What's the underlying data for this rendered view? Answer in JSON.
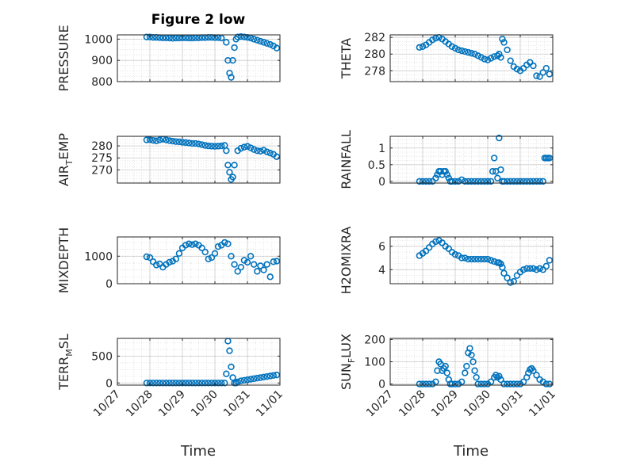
{
  "figure_title": "Figure 2 low",
  "xlabel": "Time",
  "x_ticks": [
    "10/27",
    "10/28",
    "10/29",
    "10/30",
    "10/31",
    "11/01"
  ],
  "colors": {
    "marker": "#0072BD",
    "axis": "#262626",
    "grid": "#b0b0b0",
    "background": "#ffffff"
  },
  "chart_data": [
    {
      "type": "scatter",
      "ylabel": "PRESSURE",
      "ylabel_main": "PRESSURE",
      "ylabel_sub": "",
      "ylabel_tail": "",
      "ylim": [
        800,
        1020
      ],
      "yticks": [
        800,
        900,
        1000
      ],
      "xlim": [
        0,
        5
      ],
      "x": [
        0.9,
        1.0,
        1.1,
        1.2,
        1.3,
        1.4,
        1.5,
        1.6,
        1.7,
        1.8,
        1.9,
        2.0,
        2.1,
        2.2,
        2.3,
        2.4,
        2.5,
        2.6,
        2.7,
        2.8,
        2.9,
        3.0,
        3.1,
        3.2,
        3.35,
        3.4,
        3.45,
        3.5,
        3.55,
        3.6,
        3.65,
        3.7,
        3.8,
        3.9,
        4.0,
        4.1,
        4.2,
        4.3,
        4.4,
        4.5,
        4.6,
        4.7,
        4.8,
        4.9
      ],
      "y": [
        1010,
        1010,
        1008,
        1008,
        1007,
        1006,
        1006,
        1005,
        1004,
        1005,
        1005,
        1006,
        1006,
        1005,
        1005,
        1006,
        1006,
        1007,
        1007,
        1008,
        1008,
        1007,
        1007,
        1005,
        985,
        900,
        840,
        820,
        900,
        960,
        1000,
        1010,
        1012,
        1010,
        1008,
        1005,
        1000,
        995,
        990,
        985,
        980,
        975,
        968,
        958
      ]
    },
    {
      "type": "scatter",
      "ylabel": "THETA",
      "ylabel_main": "THETA",
      "ylabel_sub": "",
      "ylabel_tail": "",
      "ylim": [
        276.7,
        282.3
      ],
      "yticks": [
        278,
        280,
        282
      ],
      "xlim": [
        0,
        5
      ],
      "x": [
        0.9,
        1.0,
        1.1,
        1.2,
        1.3,
        1.4,
        1.5,
        1.6,
        1.7,
        1.8,
        1.9,
        2.0,
        2.1,
        2.2,
        2.3,
        2.4,
        2.5,
        2.6,
        2.7,
        2.8,
        2.9,
        3.0,
        3.1,
        3.2,
        3.3,
        3.35,
        3.4,
        3.45,
        3.5,
        3.6,
        3.7,
        3.8,
        3.9,
        4.0,
        4.1,
        4.2,
        4.3,
        4.4,
        4.5,
        4.6,
        4.7,
        4.8,
        4.9
      ],
      "y": [
        280.8,
        280.9,
        281.1,
        281.4,
        281.7,
        281.9,
        282.0,
        281.8,
        281.5,
        281.2,
        280.9,
        280.7,
        280.5,
        280.4,
        280.3,
        280.2,
        280.1,
        280.0,
        279.8,
        279.6,
        279.4,
        279.3,
        279.5,
        279.7,
        279.8,
        280.0,
        279.6,
        281.8,
        281.4,
        280.5,
        279.2,
        278.5,
        278.2,
        278.0,
        278.3,
        278.7,
        279.0,
        278.6,
        277.4,
        277.3,
        277.8,
        278.3,
        277.6
      ]
    },
    {
      "type": "scatter",
      "ylabel": "AIR_TEMP",
      "ylabel_main": "AIR",
      "ylabel_sub": "T",
      "ylabel_tail": "EMP",
      "ylim": [
        264.5,
        284
      ],
      "yticks": [
        270,
        275,
        280
      ],
      "xlim": [
        0,
        5
      ],
      "x": [
        0.9,
        1.0,
        1.1,
        1.2,
        1.3,
        1.4,
        1.5,
        1.6,
        1.7,
        1.8,
        1.9,
        2.0,
        2.1,
        2.2,
        2.3,
        2.4,
        2.5,
        2.6,
        2.7,
        2.8,
        2.9,
        3.0,
        3.1,
        3.2,
        3.3,
        3.35,
        3.4,
        3.45,
        3.5,
        3.55,
        3.6,
        3.7,
        3.8,
        3.9,
        4.0,
        4.1,
        4.2,
        4.3,
        4.4,
        4.5,
        4.6,
        4.7,
        4.8,
        4.9
      ],
      "y": [
        282.5,
        282.6,
        282.3,
        282.1,
        282.5,
        282.8,
        282.5,
        282.2,
        282.0,
        281.8,
        281.7,
        281.5,
        281.4,
        281.2,
        281.0,
        281.0,
        280.8,
        280.5,
        280.2,
        280.0,
        279.9,
        279.8,
        279.9,
        280.0,
        280.2,
        278.0,
        272.0,
        269.0,
        266.0,
        267.0,
        272.0,
        278.0,
        279.0,
        279.5,
        279.8,
        279.2,
        278.5,
        278.0,
        277.8,
        278.2,
        277.5,
        277.0,
        276.5,
        275.5
      ]
    },
    {
      "type": "scatter",
      "ylabel": "RAINFALL",
      "ylabel_main": "RAINFALL",
      "ylabel_sub": "",
      "ylabel_tail": "",
      "ylim": [
        -0.05,
        1.35
      ],
      "yticks": [
        0,
        0.5,
        1
      ],
      "ytick_labels": [
        "0",
        "0.5",
        "1"
      ],
      "xlim": [
        0,
        5
      ],
      "x": [
        0.9,
        1.0,
        1.1,
        1.2,
        1.3,
        1.4,
        1.45,
        1.5,
        1.55,
        1.6,
        1.65,
        1.7,
        1.75,
        1.8,
        1.85,
        1.9,
        2.0,
        2.1,
        2.2,
        2.3,
        2.4,
        2.5,
        2.6,
        2.7,
        2.8,
        2.9,
        3.0,
        3.1,
        3.15,
        3.2,
        3.25,
        3.3,
        3.35,
        3.4,
        3.45,
        3.5,
        3.6,
        3.7,
        3.8,
        3.9,
        4.0,
        4.1,
        4.2,
        4.3,
        4.4,
        4.5,
        4.6,
        4.7,
        4.75,
        4.8,
        4.85,
        4.9
      ],
      "y": [
        0,
        0,
        0,
        0,
        0,
        0.1,
        0.2,
        0.3,
        0.3,
        0.2,
        0.3,
        0.3,
        0.2,
        0.1,
        0,
        0,
        0,
        0,
        0.05,
        0,
        0,
        0,
        0,
        0,
        0,
        0,
        0,
        0,
        0.3,
        0.7,
        0.3,
        0.1,
        1.3,
        0.35,
        0,
        0,
        0,
        0,
        0,
        0,
        0,
        0,
        0,
        0,
        0,
        0,
        0,
        0,
        0.7,
        0.7,
        0.7,
        0.7
      ]
    },
    {
      "type": "scatter",
      "ylabel": "MIXDEPTH",
      "ylabel_main": "MIXDEPTH",
      "ylabel_sub": "",
      "ylabel_tail": "",
      "ylim": [
        0,
        1700
      ],
      "yticks": [
        0,
        1000
      ],
      "xlim": [
        0,
        5
      ],
      "x": [
        0.9,
        1.0,
        1.1,
        1.2,
        1.3,
        1.4,
        1.5,
        1.6,
        1.7,
        1.8,
        1.9,
        2.0,
        2.1,
        2.2,
        2.3,
        2.4,
        2.5,
        2.6,
        2.7,
        2.8,
        2.9,
        3.0,
        3.1,
        3.2,
        3.3,
        3.4,
        3.5,
        3.6,
        3.7,
        3.8,
        3.9,
        4.0,
        4.1,
        4.2,
        4.3,
        4.4,
        4.5,
        4.6,
        4.7,
        4.8,
        4.9
      ],
      "y": [
        980,
        950,
        800,
        680,
        720,
        600,
        700,
        780,
        820,
        900,
        1100,
        1300,
        1400,
        1450,
        1420,
        1450,
        1400,
        1300,
        1150,
        900,
        950,
        1100,
        1350,
        1400,
        1500,
        1450,
        1000,
        700,
        450,
        600,
        850,
        780,
        1000,
        700,
        450,
        650,
        500,
        700,
        250,
        800,
        820
      ]
    },
    {
      "type": "scatter",
      "ylabel": "H2OMIXRA",
      "ylabel_main": "H2OMIXRA",
      "ylabel_sub": "",
      "ylabel_tail": "",
      "ylim": [
        2.8,
        6.8
      ],
      "yticks": [
        4,
        6
      ],
      "xlim": [
        0,
        5
      ],
      "x": [
        0.9,
        1.0,
        1.1,
        1.2,
        1.3,
        1.4,
        1.5,
        1.6,
        1.7,
        1.8,
        1.9,
        2.0,
        2.1,
        2.2,
        2.3,
        2.4,
        2.5,
        2.6,
        2.7,
        2.8,
        2.9,
        3.0,
        3.1,
        3.2,
        3.3,
        3.35,
        3.4,
        3.45,
        3.5,
        3.6,
        3.7,
        3.8,
        3.9,
        4.0,
        4.1,
        4.2,
        4.3,
        4.4,
        4.5,
        4.6,
        4.7,
        4.8,
        4.9
      ],
      "y": [
        5.2,
        5.4,
        5.6,
        5.9,
        6.2,
        6.4,
        6.5,
        6.3,
        6.0,
        5.8,
        5.5,
        5.3,
        5.2,
        5.0,
        5.0,
        4.9,
        4.9,
        4.9,
        4.9,
        4.9,
        4.9,
        4.9,
        4.8,
        4.7,
        4.6,
        4.6,
        4.5,
        4.2,
        3.7,
        3.3,
        2.9,
        3.0,
        3.5,
        3.8,
        4.0,
        4.1,
        4.1,
        4.1,
        4.0,
        4.1,
        4.0,
        4.3,
        4.8
      ]
    },
    {
      "type": "scatter",
      "ylabel": "TERR_MSL",
      "ylabel_main": "TERR",
      "ylabel_sub": "M",
      "ylabel_tail": "SL",
      "ylim": [
        -40,
        830
      ],
      "yticks": [
        0,
        500
      ],
      "xlim": [
        0,
        5
      ],
      "x": [
        0.9,
        1.0,
        1.1,
        1.2,
        1.3,
        1.4,
        1.5,
        1.6,
        1.7,
        1.8,
        1.9,
        2.0,
        2.1,
        2.2,
        2.3,
        2.4,
        2.5,
        2.6,
        2.7,
        2.8,
        2.9,
        3.0,
        3.1,
        3.2,
        3.3,
        3.35,
        3.4,
        3.45,
        3.5,
        3.55,
        3.6,
        3.65,
        3.7,
        3.8,
        3.9,
        4.0,
        4.1,
        4.2,
        4.3,
        4.4,
        4.5,
        4.6,
        4.7,
        4.8,
        4.9
      ],
      "y": [
        0,
        0,
        0,
        0,
        0,
        0,
        0,
        0,
        0,
        0,
        0,
        0,
        0,
        0,
        0,
        0,
        0,
        0,
        0,
        0,
        0,
        0,
        0,
        0,
        0,
        170,
        780,
        600,
        300,
        100,
        0,
        0,
        20,
        40,
        50,
        60,
        70,
        80,
        90,
        100,
        110,
        120,
        130,
        140,
        150
      ]
    },
    {
      "type": "scatter",
      "ylabel": "SUN_FLUX",
      "ylabel_main": "SUN",
      "ylabel_sub": "F",
      "ylabel_tail": "LUX",
      "ylim": [
        -5,
        205
      ],
      "yticks": [
        0,
        100,
        200
      ],
      "xlim": [
        0,
        5
      ],
      "x": [
        0.9,
        1.0,
        1.1,
        1.2,
        1.3,
        1.4,
        1.45,
        1.5,
        1.55,
        1.6,
        1.65,
        1.7,
        1.75,
        1.8,
        1.85,
        1.9,
        2.0,
        2.1,
        2.2,
        2.3,
        2.35,
        2.4,
        2.45,
        2.5,
        2.55,
        2.6,
        2.65,
        2.7,
        2.8,
        2.9,
        3.0,
        3.1,
        3.2,
        3.25,
        3.3,
        3.35,
        3.4,
        3.5,
        3.6,
        3.7,
        3.8,
        3.9,
        4.0,
        4.1,
        4.2,
        4.25,
        4.3,
        4.35,
        4.4,
        4.5,
        4.6,
        4.7,
        4.8,
        4.9
      ],
      "y": [
        0,
        0,
        0,
        0,
        0,
        10,
        60,
        100,
        90,
        60,
        70,
        80,
        50,
        20,
        0,
        0,
        0,
        0,
        10,
        50,
        80,
        140,
        160,
        130,
        100,
        60,
        30,
        0,
        0,
        0,
        0,
        10,
        30,
        40,
        30,
        35,
        20,
        0,
        0,
        0,
        0,
        0,
        0,
        10,
        30,
        50,
        65,
        70,
        60,
        40,
        20,
        10,
        0,
        0
      ]
    }
  ]
}
